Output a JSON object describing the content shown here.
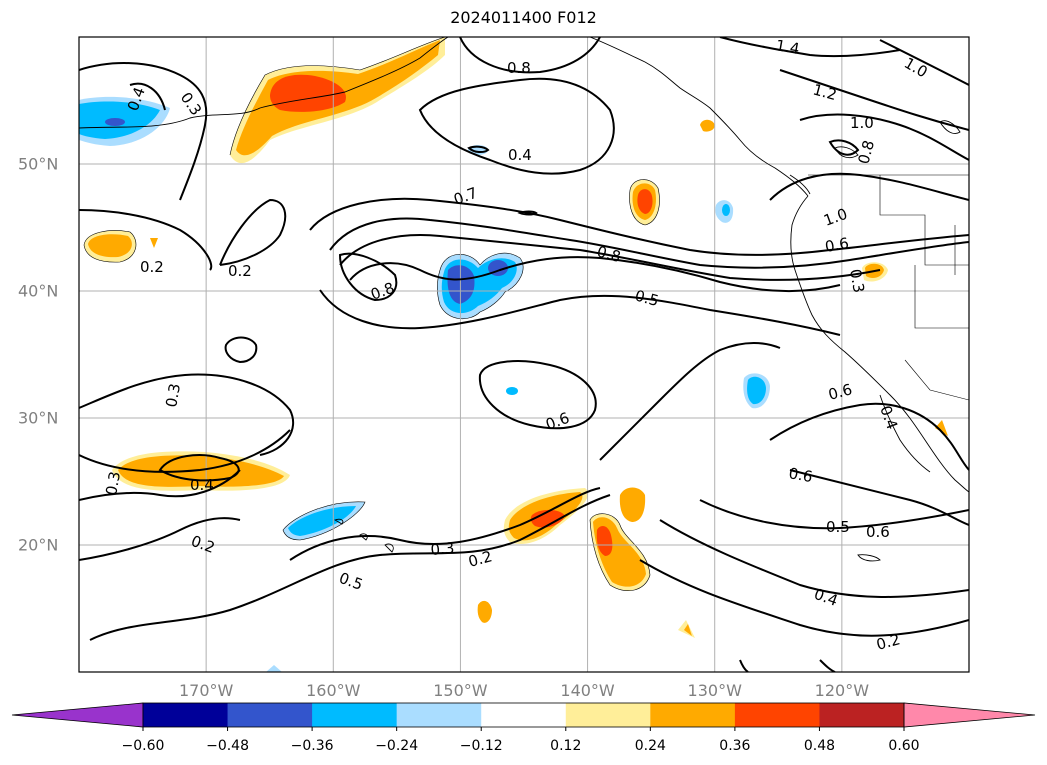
{
  "title": "2024011400 F012",
  "map": {
    "lon_range": [
      -180,
      -110
    ],
    "lat_range": [
      10,
      60
    ],
    "grid": true,
    "lon_ticks": [
      {
        "value": -170,
        "label": "170°W"
      },
      {
        "value": -160,
        "label": "160°W"
      },
      {
        "value": -150,
        "label": "150°W"
      },
      {
        "value": -140,
        "label": "140°W"
      },
      {
        "value": -130,
        "label": "130°W"
      },
      {
        "value": -120,
        "label": "120°W"
      }
    ],
    "lat_ticks": [
      {
        "value": 20,
        "label": "20°N"
      },
      {
        "value": 30,
        "label": "30°N"
      },
      {
        "value": 40,
        "label": "40°N"
      },
      {
        "value": 50,
        "label": "50°N"
      }
    ],
    "contour_labels": [
      "1.4",
      "1.2",
      "1.0",
      "1.0",
      "1.0",
      "0.8",
      "0.8",
      "0.8",
      "0.8",
      "0.7",
      "0.6",
      "0.6",
      "0.6",
      "0.6",
      "0.6",
      "0.5",
      "0.5",
      "0.5",
      "0.4",
      "0.4",
      "0.4",
      "0.4",
      "0.4",
      "0.3",
      "0.3",
      "0.3",
      "0.3",
      "0.3",
      "0.2",
      "0.2",
      "0.2",
      "0.2",
      "0.2"
    ]
  },
  "colorbar": {
    "ticks": [
      "−0.60",
      "−0.48",
      "−0.36",
      "−0.24",
      "−0.12",
      "0.12",
      "0.24",
      "0.36",
      "0.48",
      "0.60"
    ],
    "colors": [
      "#9933cc",
      "#000099",
      "#3355cc",
      "#00bbff",
      "#aaddff",
      "#ffffff",
      "#ffee99",
      "#ffaa00",
      "#ff4400",
      "#bb2222",
      "#ff88aa"
    ],
    "extend": "both"
  },
  "colors": {
    "blue_light": "#aaddff",
    "blue": "#00bbff",
    "blue_mid": "#3355cc",
    "yellow": "#ffee99",
    "orange": "#ffaa00",
    "red": "#ff4400",
    "grid": "#b0b0b0"
  }
}
